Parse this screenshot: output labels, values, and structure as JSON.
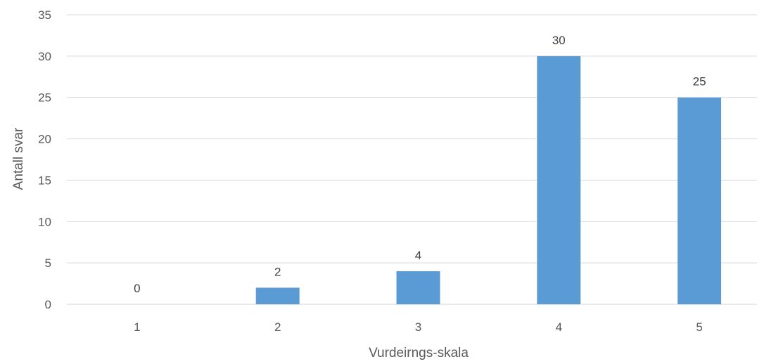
{
  "chart_data": {
    "type": "bar",
    "title": "",
    "xlabel": "Vurdeirngs-skala",
    "ylabel": "Antall svar",
    "categories": [
      "1",
      "2",
      "3",
      "4",
      "5"
    ],
    "values": [
      0,
      2,
      4,
      30,
      25
    ],
    "ylim": [
      0,
      35
    ],
    "yticks": [
      0,
      5,
      10,
      15,
      20,
      25,
      30,
      35
    ],
    "grid": true,
    "legend": "none",
    "data_labels": true,
    "bar_color": "#5b9bd5"
  }
}
